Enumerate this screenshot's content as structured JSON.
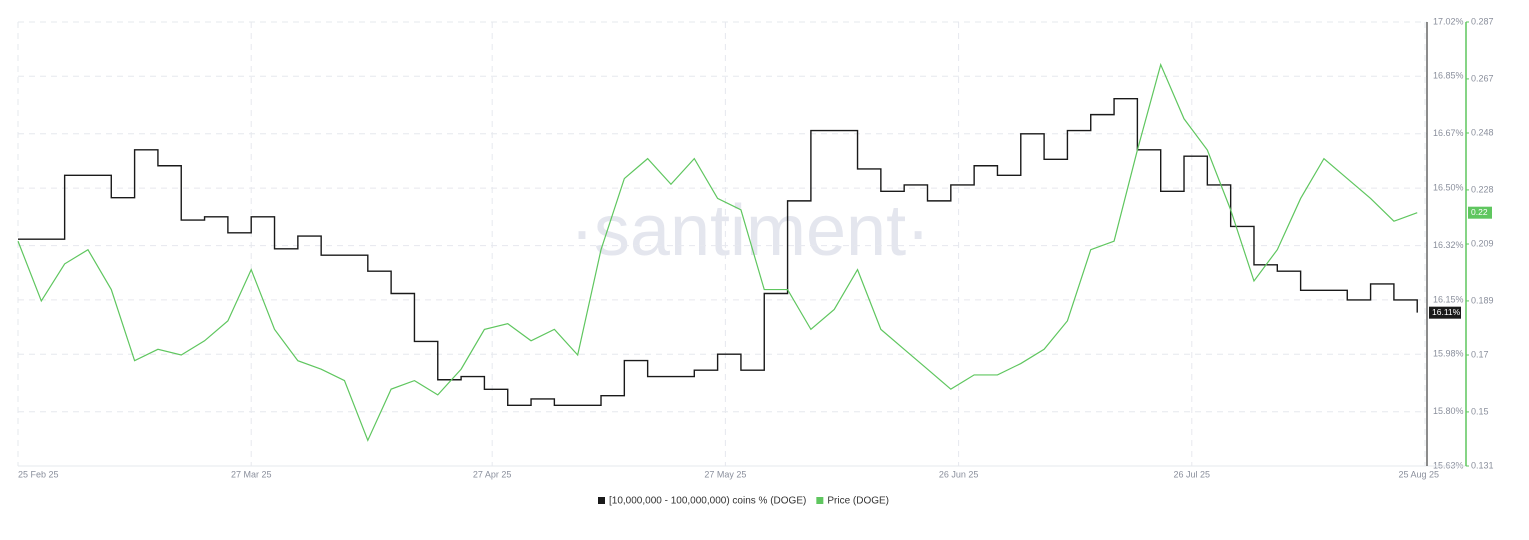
{
  "chart_data": {
    "type": "line",
    "watermark": "·santiment·",
    "x": [
      "2025-02-25",
      "2025-02-28",
      "2025-03-03",
      "2025-03-06",
      "2025-03-09",
      "2025-03-12",
      "2025-03-15",
      "2025-03-18",
      "2025-03-21",
      "2025-03-24",
      "2025-03-27",
      "2025-03-30",
      "2025-04-02",
      "2025-04-05",
      "2025-04-08",
      "2025-04-11",
      "2025-04-14",
      "2025-04-17",
      "2025-04-20",
      "2025-04-23",
      "2025-04-26",
      "2025-04-29",
      "2025-05-02",
      "2025-05-05",
      "2025-05-08",
      "2025-05-11",
      "2025-05-14",
      "2025-05-17",
      "2025-05-20",
      "2025-05-23",
      "2025-05-26",
      "2025-05-29",
      "2025-06-01",
      "2025-06-04",
      "2025-06-07",
      "2025-06-10",
      "2025-06-13",
      "2025-06-16",
      "2025-06-19",
      "2025-06-22",
      "2025-06-25",
      "2025-06-28",
      "2025-07-01",
      "2025-07-04",
      "2025-07-07",
      "2025-07-10",
      "2025-07-13",
      "2025-07-16",
      "2025-07-19",
      "2025-07-22",
      "2025-07-25",
      "2025-07-28",
      "2025-07-31",
      "2025-08-03",
      "2025-08-06",
      "2025-08-09",
      "2025-08-12",
      "2025-08-15",
      "2025-08-18",
      "2025-08-21",
      "2025-08-24"
    ],
    "xlim": [
      "2025-02-25",
      "2025-08-25"
    ],
    "xticks": [
      {
        "value": "2025-02-25",
        "label": "25 Feb 25"
      },
      {
        "value": "2025-03-27",
        "label": "27 Mar 25"
      },
      {
        "value": "2025-04-27",
        "label": "27 Apr 25"
      },
      {
        "value": "2025-05-27",
        "label": "27 May 25"
      },
      {
        "value": "2025-06-26",
        "label": "26 Jun 25"
      },
      {
        "value": "2025-07-26",
        "label": "26 Jul 25"
      },
      {
        "value": "2025-08-25",
        "label": "25 Aug 25"
      }
    ],
    "ylim": [
      15.63,
      17.02
    ],
    "yticks": [
      {
        "value": 17.02,
        "label": "17.02%"
      },
      {
        "value": 16.85,
        "label": "16.85%"
      },
      {
        "value": 16.67,
        "label": "16.67%"
      },
      {
        "value": 16.5,
        "label": "16.50%"
      },
      {
        "value": 16.32,
        "label": "16.32%"
      },
      {
        "value": 16.15,
        "label": "16.15%"
      },
      {
        "value": 15.98,
        "label": "15.98%"
      },
      {
        "value": 15.8,
        "label": "15.80%"
      },
      {
        "value": 15.63,
        "label": "15.63%"
      }
    ],
    "y2lim": [
      0.131,
      0.287
    ],
    "y2ticks": [
      0.287,
      0.267,
      0.248,
      0.228,
      0.209,
      0.189,
      0.17,
      0.15,
      0.131
    ],
    "grid": true,
    "series": [
      {
        "name": "[10,000,000 - 100,000,000) coins % (DOGE)",
        "color": "#1a1a1a",
        "step": true,
        "values": [
          16.34,
          16.34,
          16.54,
          16.54,
          16.47,
          16.62,
          16.57,
          16.4,
          16.41,
          16.36,
          16.41,
          16.31,
          16.35,
          16.29,
          16.29,
          16.24,
          16.17,
          16.02,
          15.9,
          15.91,
          15.87,
          15.82,
          15.84,
          15.82,
          15.82,
          15.85,
          15.96,
          15.91,
          15.91,
          15.93,
          15.98,
          15.93,
          16.17,
          16.46,
          16.68,
          16.68,
          16.56,
          16.49,
          16.51,
          16.46,
          16.51,
          16.57,
          16.54,
          16.67,
          16.59,
          16.68,
          16.73,
          16.78,
          16.62,
          16.49,
          16.6,
          16.51,
          16.38,
          16.26,
          16.24,
          16.18,
          16.18,
          16.15,
          16.2,
          16.15,
          16.11
        ],
        "value_labels": [
          null,
          null,
          null,
          null,
          null,
          null,
          null,
          null,
          null,
          null,
          null,
          null,
          null,
          null,
          null,
          null,
          null,
          null,
          null,
          null,
          null,
          null,
          null,
          null,
          null,
          null,
          null,
          null,
          null,
          null,
          null,
          null,
          null,
          null,
          null,
          null,
          null,
          null,
          null,
          null,
          null,
          null,
          null,
          null,
          null,
          null,
          null,
          null,
          null,
          null,
          null,
          null,
          null,
          null,
          null,
          null,
          null,
          null,
          null,
          null,
          "16.11%"
        ]
      },
      {
        "name": "Price (DOGE)",
        "color": "#5fc65f",
        "axis": "y2",
        "values": [
          0.21,
          0.189,
          0.202,
          0.207,
          0.193,
          0.168,
          0.172,
          0.17,
          0.175,
          0.182,
          0.2,
          0.179,
          0.168,
          0.165,
          0.161,
          0.14,
          0.158,
          0.161,
          0.156,
          0.165,
          0.179,
          0.181,
          0.175,
          0.179,
          0.17,
          0.207,
          0.232,
          0.239,
          0.23,
          0.239,
          0.225,
          0.221,
          0.193,
          0.193,
          0.179,
          0.186,
          0.2,
          0.179,
          0.172,
          0.165,
          0.158,
          0.163,
          0.163,
          0.167,
          0.172,
          0.182,
          0.207,
          0.21,
          0.242,
          0.272,
          0.253,
          0.242,
          0.221,
          0.196,
          0.207,
          0.225,
          0.239,
          0.232,
          0.225,
          0.217,
          0.22
        ]
      }
    ]
  }
}
